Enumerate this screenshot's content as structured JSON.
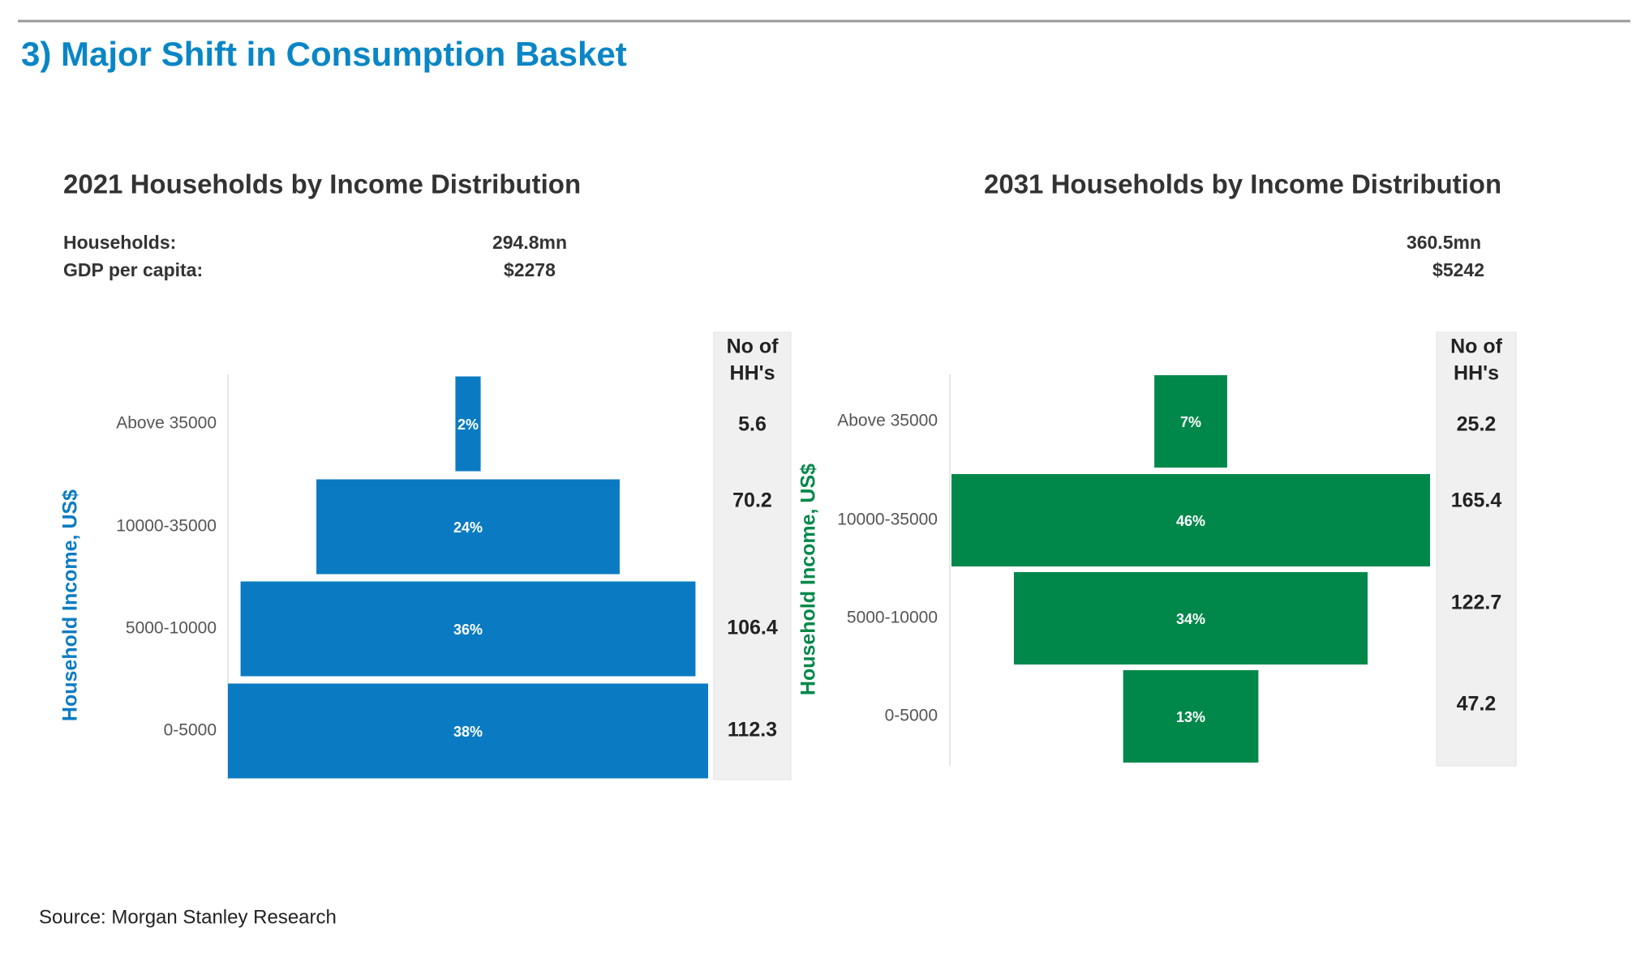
{
  "title": "3) Major Shift in Consumption Basket",
  "source": "Source: Morgan Stanley Research",
  "meta_labels": [
    "Households:",
    "GDP per capita:"
  ],
  "chart_data": [
    {
      "type": "funnel",
      "title": "2021 Households by Income Distribution",
      "households": "294.8mn",
      "gdp_per_capita": "$2278",
      "y_label": "Household Income, US$",
      "color": "#0a7bc2",
      "categories": [
        "Above 35000",
        "10000-35000",
        "5000-10000",
        "0-5000"
      ],
      "values": [
        2,
        24,
        36,
        38
      ],
      "value_labels": [
        "2%",
        "24%",
        "36%",
        "38%"
      ],
      "hh_header": [
        "No of",
        "HH's"
      ],
      "hh_values": [
        5.6,
        70.2,
        106.4,
        112.3
      ]
    },
    {
      "type": "funnel",
      "title": "2031 Households by Income Distribution",
      "households": "360.5mn",
      "gdp_per_capita": "$5242",
      "y_label": "Household Income, US$",
      "color": "#00884a",
      "categories": [
        "Above 35000",
        "10000-35000",
        "5000-10000",
        "0-5000"
      ],
      "values": [
        7,
        46,
        34,
        13
      ],
      "value_labels": [
        "7%",
        "46%",
        "34%",
        "13%"
      ],
      "hh_header": [
        "No of",
        "HH's"
      ],
      "hh_values": [
        25.2,
        165.4,
        122.7,
        47.2
      ]
    }
  ]
}
